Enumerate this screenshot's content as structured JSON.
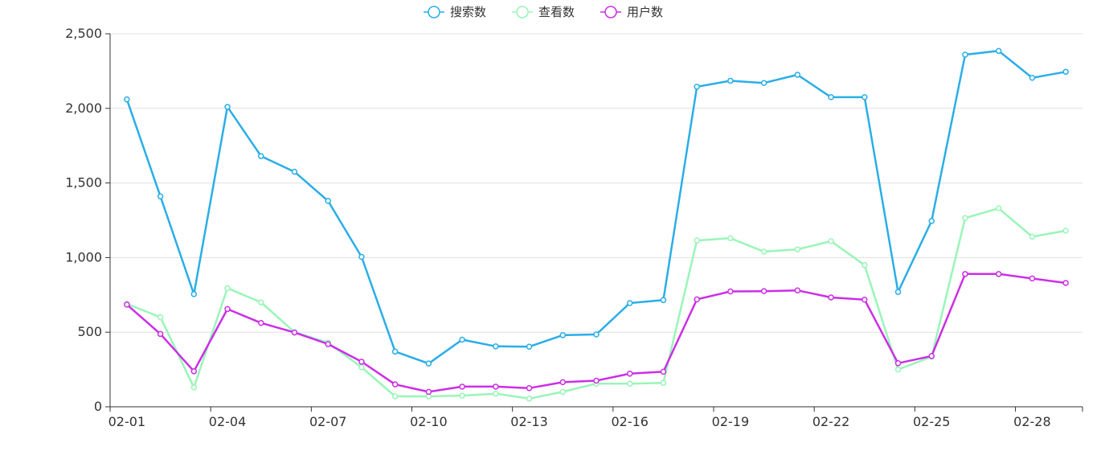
{
  "chart_data": {
    "type": "line",
    "title": "",
    "xlabel": "",
    "ylabel": "",
    "categories": [
      "02-01",
      "02-02",
      "02-03",
      "02-04",
      "02-05",
      "02-06",
      "02-07",
      "02-08",
      "02-09",
      "02-10",
      "02-11",
      "02-12",
      "02-13",
      "02-14",
      "02-15",
      "02-16",
      "02-17",
      "02-18",
      "02-19",
      "02-20",
      "02-21",
      "02-22",
      "02-23",
      "02-24",
      "02-25",
      "02-26",
      "02-27",
      "02-28",
      "02-29"
    ],
    "x_tick_labels": [
      "02-01",
      "02-04",
      "02-07",
      "02-10",
      "02-13",
      "02-16",
      "02-19",
      "02-22",
      "02-25",
      "02-28"
    ],
    "y_tick_labels": [
      "0",
      "500",
      "1,000",
      "1,500",
      "2,000",
      "2,500"
    ],
    "ylim": [
      0,
      2500
    ],
    "y_ticks": [
      0,
      500,
      1000,
      1500,
      2000,
      2500
    ],
    "grid": true,
    "legend_position": "top-center",
    "series": [
      {
        "name": "搜索数",
        "color": "#29aee8",
        "values": [
          2060,
          1410,
          755,
          2010,
          1680,
          1575,
          1380,
          1005,
          370,
          290,
          450,
          405,
          403,
          480,
          485,
          695,
          715,
          2145,
          2185,
          2170,
          2225,
          2075,
          2075,
          770,
          1245,
          2360,
          2385,
          2205,
          2245
        ]
      },
      {
        "name": "查看数",
        "color": "#99f5b8",
        "values": [
          690,
          600,
          130,
          795,
          700,
          500,
          430,
          265,
          70,
          70,
          75,
          88,
          55,
          100,
          155,
          155,
          160,
          1115,
          1130,
          1040,
          1055,
          1110,
          950,
          250,
          335,
          1265,
          1330,
          1140,
          1180
        ]
      },
      {
        "name": "用户数",
        "color": "#cc2ee6",
        "values": [
          685,
          488,
          238,
          655,
          562,
          498,
          420,
          302,
          150,
          100,
          135,
          135,
          125,
          165,
          175,
          222,
          235,
          720,
          773,
          775,
          780,
          733,
          718,
          292,
          340,
          890,
          890,
          860,
          830
        ]
      }
    ]
  }
}
